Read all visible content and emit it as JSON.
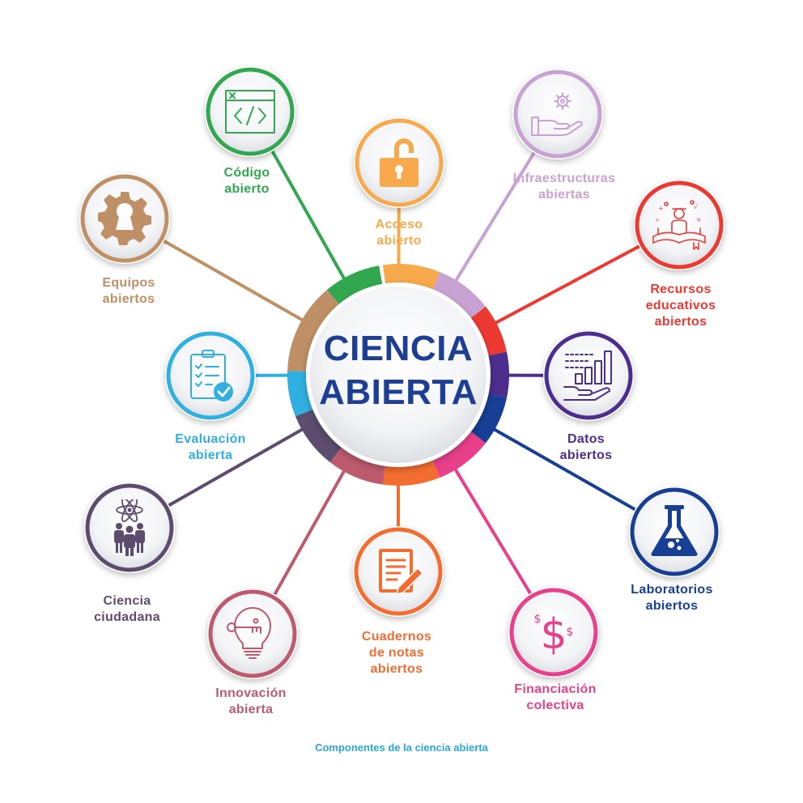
{
  "center": {
    "line1": "CIENCIA",
    "line2": "ABIERTA",
    "color": "#1d3e92"
  },
  "caption": {
    "text": "Componentes de la ciencia abierta",
    "color": "#29a7d6"
  },
  "nodes": [
    {
      "id": "codigo-abierto",
      "lines": [
        "Código",
        "abierto"
      ],
      "color": "#31a84f",
      "icon": "code-window-icon"
    },
    {
      "id": "acceso-abierto",
      "lines": [
        "Acceso",
        "abierto"
      ],
      "color": "#f7a94b",
      "icon": "open-padlock-icon"
    },
    {
      "id": "infraestructuras-abiertas",
      "lines": [
        "Infraestructuras",
        "abiertas"
      ],
      "color": "#c7a2d2",
      "icon": "hand-gear-icon"
    },
    {
      "id": "recursos-educativos-abiertos",
      "lines": [
        "Recursos",
        "educativos",
        "abiertos"
      ],
      "color": "#ec3a33",
      "icon": "open-book-reader-icon"
    },
    {
      "id": "datos-abiertos",
      "lines": [
        "Datos",
        "abiertos"
      ],
      "color": "#4b2e8e",
      "icon": "hand-bar-chart-icon"
    },
    {
      "id": "laboratorios-abiertos",
      "lines": [
        "Laboratorios",
        "abiertos"
      ],
      "color": "#173f95",
      "icon": "flask-icon"
    },
    {
      "id": "financiacion-colectiva",
      "lines": [
        "Financiación",
        "colectiva"
      ],
      "color": "#e8408a",
      "icon": "dollar-icon"
    },
    {
      "id": "cuadernos-de-notas-abiertos",
      "lines": [
        "Cuadernos",
        "de notas",
        "abiertos"
      ],
      "color": "#f26d2f",
      "icon": "notebook-pen-icon"
    },
    {
      "id": "innovacion-abierta",
      "lines": [
        "Innovación",
        "abierta"
      ],
      "color": "#bd5a6e",
      "icon": "lightbulb-key-icon"
    },
    {
      "id": "ciencia-ciudadana",
      "lines": [
        "Ciencia",
        "ciudadana"
      ],
      "color": "#5c4d6e",
      "icon": "people-atom-icon"
    },
    {
      "id": "evaluacion-abierta",
      "lines": [
        "Evaluación",
        "abierta"
      ],
      "color": "#2fb0e0",
      "icon": "checklist-icon"
    },
    {
      "id": "equipos-abiertos",
      "lines": [
        "Equipos",
        "abiertos"
      ],
      "color": "#bf9065",
      "icon": "gear-icon"
    }
  ]
}
